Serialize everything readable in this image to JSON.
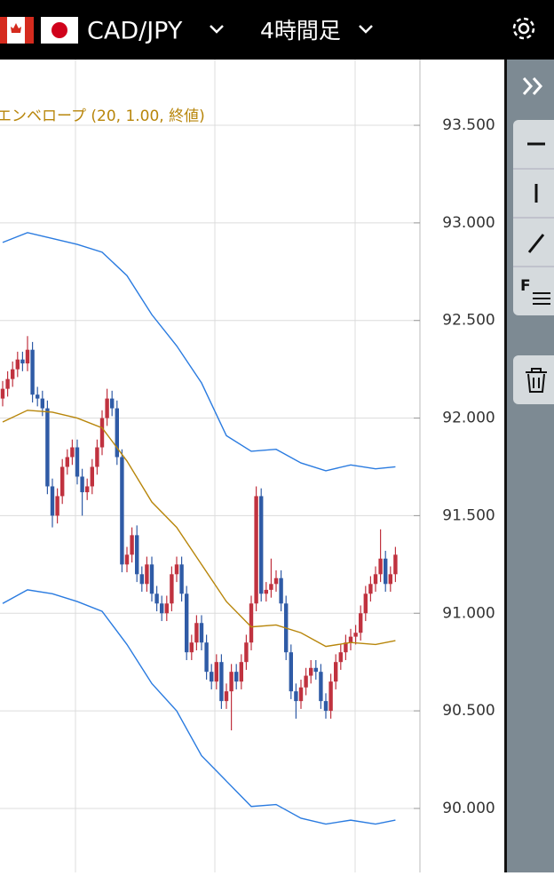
{
  "header": {
    "pair": "CAD/JPY",
    "timeframe": "4時間足"
  },
  "toolbar": {
    "fib_icon": "F"
  },
  "chart_data": {
    "type": "candlestick",
    "legend": "エンベロープ (20, 1.00, 終値)",
    "ylim": [
      89.672,
      93.837
    ],
    "yticks": [
      {
        "value": 90,
        "label": "90.000"
      },
      {
        "value": 90.5,
        "label": "90.500"
      },
      {
        "value": 91,
        "label": "91.000"
      },
      {
        "value": 91.5,
        "label": "91.500"
      },
      {
        "value": 92,
        "label": "92.000"
      },
      {
        "value": 92.5,
        "label": "92.500"
      },
      {
        "value": 93,
        "label": "93.000"
      },
      {
        "value": 93.5,
        "label": "93.500"
      }
    ],
    "grid": true,
    "up_color": "#c0323f",
    "down_color": "#2f5ba6",
    "ohlc": [
      [
        92.1,
        92.19,
        92.06,
        92.15
      ],
      [
        92.15,
        92.24,
        92.11,
        92.2
      ],
      [
        92.2,
        92.29,
        92.16,
        92.25
      ],
      [
        92.25,
        92.34,
        92.21,
        92.3
      ],
      [
        92.3,
        92.34,
        92.24,
        92.28
      ],
      [
        92.28,
        92.42,
        92.24,
        92.35
      ],
      [
        92.35,
        92.39,
        92.08,
        92.12
      ],
      [
        92.12,
        92.16,
        92.06,
        92.1
      ],
      [
        92.1,
        92.14,
        92.01,
        92.05
      ],
      [
        92.05,
        92.09,
        91.61,
        91.65
      ],
      [
        91.65,
        91.69,
        91.44,
        91.5
      ],
      [
        91.5,
        91.64,
        91.46,
        91.6
      ],
      [
        91.6,
        91.79,
        91.56,
        91.75
      ],
      [
        91.75,
        91.84,
        91.71,
        91.8
      ],
      [
        91.8,
        91.89,
        91.76,
        91.85
      ],
      [
        91.85,
        91.89,
        91.66,
        91.7
      ],
      [
        91.7,
        91.74,
        91.5,
        91.62
      ],
      [
        91.62,
        91.69,
        91.58,
        91.65
      ],
      [
        91.65,
        91.79,
        91.61,
        91.75
      ],
      [
        91.75,
        91.89,
        91.71,
        91.85
      ],
      [
        91.85,
        92.04,
        91.81,
        92.0
      ],
      [
        92.0,
        92.15,
        91.96,
        92.1
      ],
      [
        92.1,
        92.14,
        92.01,
        92.05
      ],
      [
        92.05,
        92.09,
        91.76,
        91.8
      ],
      [
        91.8,
        91.84,
        91.21,
        91.25
      ],
      [
        91.25,
        91.34,
        91.21,
        91.3
      ],
      [
        91.3,
        91.44,
        91.26,
        91.4
      ],
      [
        91.4,
        91.45,
        91.16,
        91.2
      ],
      [
        91.2,
        91.24,
        91.11,
        91.15
      ],
      [
        91.15,
        91.29,
        91.11,
        91.25
      ],
      [
        91.25,
        91.29,
        91.06,
        91.1
      ],
      [
        91.1,
        91.14,
        91.01,
        91.05
      ],
      [
        91.05,
        91.09,
        90.96,
        91.0
      ],
      [
        91.0,
        91.09,
        90.96,
        91.05
      ],
      [
        91.05,
        91.24,
        91.01,
        91.2
      ],
      [
        91.2,
        91.29,
        91.16,
        91.25
      ],
      [
        91.25,
        91.29,
        91.06,
        91.1
      ],
      [
        91.1,
        91.14,
        90.76,
        90.8
      ],
      [
        90.8,
        90.89,
        90.76,
        90.85
      ],
      [
        90.85,
        90.99,
        90.81,
        90.95
      ],
      [
        90.95,
        90.99,
        90.81,
        90.85
      ],
      [
        90.85,
        90.89,
        90.66,
        90.7
      ],
      [
        90.7,
        90.74,
        90.61,
        90.65
      ],
      [
        90.65,
        90.79,
        90.61,
        90.75
      ],
      [
        90.75,
        90.79,
        90.51,
        90.55
      ],
      [
        90.55,
        90.64,
        90.51,
        90.6
      ],
      [
        90.6,
        90.74,
        90.4,
        90.7
      ],
      [
        90.7,
        90.74,
        90.61,
        90.65
      ],
      [
        90.65,
        90.79,
        90.61,
        90.75
      ],
      [
        90.75,
        90.89,
        90.71,
        90.85
      ],
      [
        90.85,
        91.09,
        90.81,
        91.05
      ],
      [
        91.05,
        91.65,
        91.01,
        91.6
      ],
      [
        91.6,
        91.64,
        91.06,
        91.1
      ],
      [
        91.1,
        91.16,
        91.06,
        91.12
      ],
      [
        91.12,
        91.28,
        91.08,
        91.15
      ],
      [
        91.15,
        91.22,
        91.11,
        91.18
      ],
      [
        91.18,
        91.22,
        91.01,
        91.05
      ],
      [
        91.05,
        91.09,
        90.76,
        90.8
      ],
      [
        90.8,
        90.84,
        90.56,
        90.6
      ],
      [
        90.6,
        90.64,
        90.46,
        90.55
      ],
      [
        90.55,
        90.66,
        90.51,
        90.62
      ],
      [
        90.62,
        90.72,
        90.58,
        90.68
      ],
      [
        90.68,
        90.76,
        90.64,
        90.72
      ],
      [
        90.72,
        90.76,
        90.66,
        90.7
      ],
      [
        90.7,
        90.74,
        90.51,
        90.55
      ],
      [
        90.55,
        90.59,
        90.46,
        90.5
      ],
      [
        90.5,
        90.69,
        90.46,
        90.65
      ],
      [
        90.65,
        90.79,
        90.61,
        90.75
      ],
      [
        90.75,
        90.84,
        90.71,
        90.8
      ],
      [
        90.8,
        90.89,
        90.76,
        90.85
      ],
      [
        90.85,
        90.92,
        90.81,
        90.88
      ],
      [
        90.88,
        90.94,
        90.84,
        90.9
      ],
      [
        90.9,
        91.04,
        90.86,
        91.0
      ],
      [
        91.0,
        91.14,
        90.96,
        91.1
      ],
      [
        91.1,
        91.19,
        91.06,
        91.15
      ],
      [
        91.15,
        91.24,
        91.11,
        91.2
      ],
      [
        91.2,
        91.43,
        91.16,
        91.28
      ],
      [
        91.28,
        91.32,
        91.11,
        91.15
      ],
      [
        91.15,
        91.24,
        91.11,
        91.2
      ],
      [
        91.2,
        91.34,
        91.16,
        91.3
      ]
    ],
    "x": [
      0,
      5,
      10,
      15,
      20,
      25,
      30,
      35,
      40,
      45,
      50,
      55,
      60,
      65,
      70,
      75,
      79
    ],
    "series": [
      {
        "color": "#2a7be0",
        "values": [
          92.9,
          92.95,
          92.92,
          92.89,
          92.85,
          92.73,
          92.53,
          92.37,
          92.18,
          91.91,
          91.83,
          91.84,
          91.77,
          91.73,
          91.76,
          91.74,
          91.75
        ]
      },
      {
        "color": "#b8860b",
        "values": [
          91.98,
          92.04,
          92.03,
          92.0,
          91.95,
          91.78,
          91.57,
          91.44,
          91.25,
          91.06,
          90.93,
          90.94,
          90.9,
          90.83,
          90.85,
          90.84,
          90.86
        ]
      },
      {
        "color": "#2a7be0",
        "values": [
          91.05,
          91.12,
          91.1,
          91.06,
          91.01,
          90.84,
          90.64,
          90.5,
          90.27,
          90.14,
          90.01,
          90.02,
          89.95,
          89.92,
          89.94,
          89.92,
          89.94
        ]
      }
    ]
  }
}
